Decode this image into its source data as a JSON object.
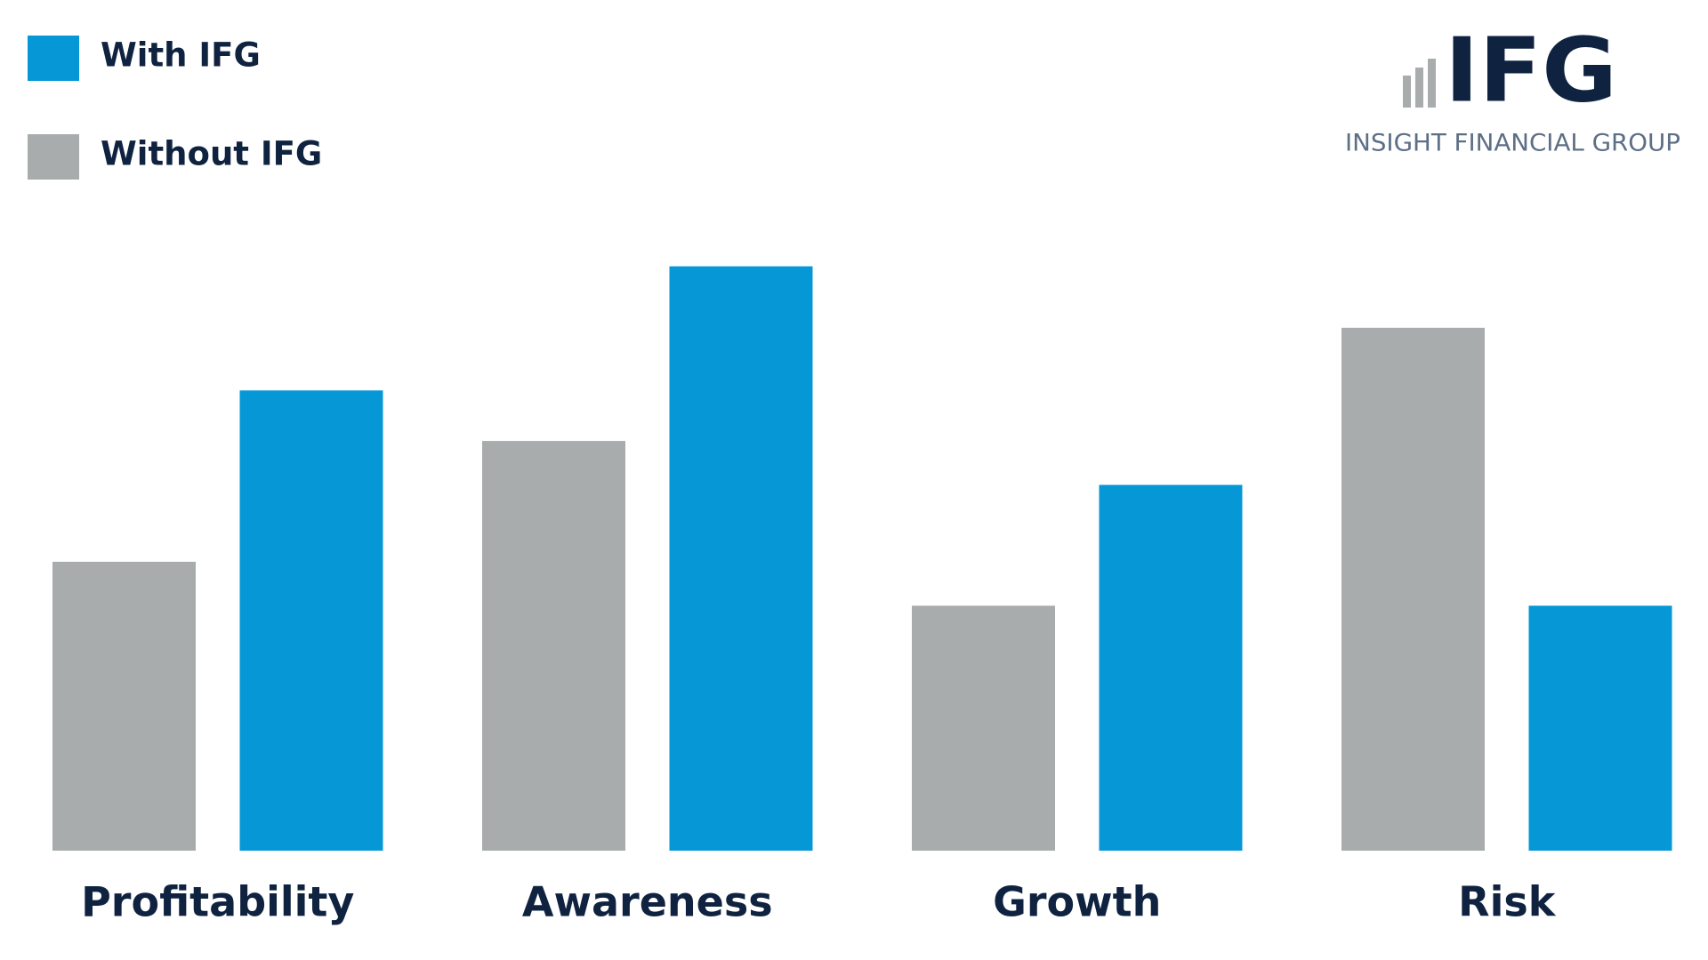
{
  "chart_data": {
    "type": "bar",
    "categories": [
      "Profitability",
      "Awareness",
      "Growth",
      "Risk"
    ],
    "series": [
      {
        "name": "Without IFG",
        "color": "#a8acad",
        "values": [
          263,
          373,
          223,
          476
        ]
      },
      {
        "name": "With IFG",
        "color": "#0698d6",
        "values": [
          419,
          532,
          333,
          223
        ]
      }
    ],
    "ylim": [
      0,
      560
    ]
  },
  "logo": {
    "mark": "IFG",
    "tagline": "INSIGHT FINANCIAL GROUP"
  }
}
